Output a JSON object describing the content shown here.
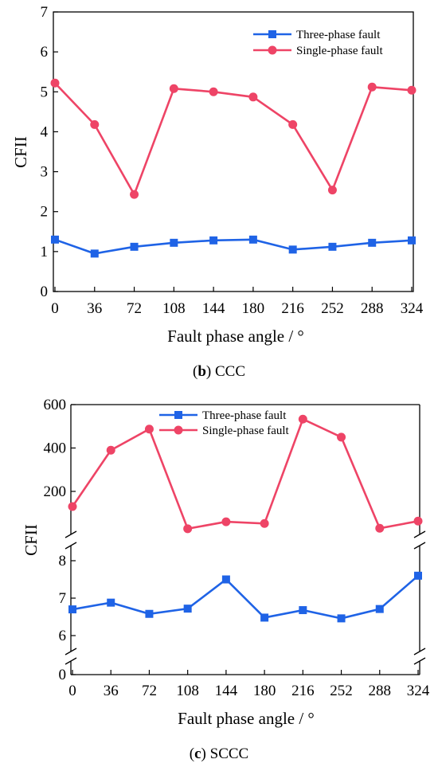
{
  "chart_data": [
    {
      "type": "line",
      "caption_letter": "b",
      "caption_text": "CCC",
      "xlabel": "Fault phase angle / °",
      "ylabel": "CFII",
      "x": [
        0,
        36,
        72,
        108,
        144,
        180,
        216,
        252,
        288,
        324
      ],
      "xlim": [
        0,
        324
      ],
      "ylim": [
        0,
        7
      ],
      "yticks": [
        0,
        1,
        2,
        3,
        4,
        5,
        6,
        7
      ],
      "grid": false,
      "legend_position": "top-right",
      "series": [
        {
          "name": "Three-phase fault",
          "color": "#1f63e6",
          "marker": "square",
          "values": [
            1.3,
            0.95,
            1.12,
            1.22,
            1.28,
            1.3,
            1.05,
            1.12,
            1.22,
            1.28
          ]
        },
        {
          "name": "Single-phase fault",
          "color": "#ee4466",
          "marker": "circle",
          "values": [
            5.22,
            4.18,
            2.43,
            5.08,
            5.0,
            4.87,
            4.18,
            2.54,
            5.12,
            5.04
          ]
        }
      ]
    },
    {
      "type": "line",
      "caption_letter": "c",
      "caption_text": "SCCC",
      "xlabel": "Fault phase angle / °",
      "ylabel": "CFII",
      "x": [
        0,
        36,
        72,
        108,
        144,
        180,
        216,
        252,
        288,
        324
      ],
      "xlim": [
        0,
        324
      ],
      "broken_y_axis": true,
      "ylim_upper": [
        20,
        600
      ],
      "yticks_upper": [
        200,
        400,
        600
      ],
      "ylim_lower": [
        0,
        8.5
      ],
      "yticks_lower": [
        0,
        6,
        7,
        8
      ],
      "grid": false,
      "legend_position": "top-right",
      "series": [
        {
          "name": "Three-phase fault",
          "color": "#1f63e6",
          "marker": "square",
          "values": [
            6.7,
            6.88,
            6.58,
            6.72,
            7.5,
            6.48,
            6.68,
            6.46,
            6.71,
            7.6
          ]
        },
        {
          "name": "Single-phase fault",
          "color": "#ee4466",
          "marker": "circle",
          "values": [
            130,
            390,
            487,
            28,
            60,
            52,
            533,
            450,
            30,
            63
          ]
        }
      ]
    }
  ]
}
